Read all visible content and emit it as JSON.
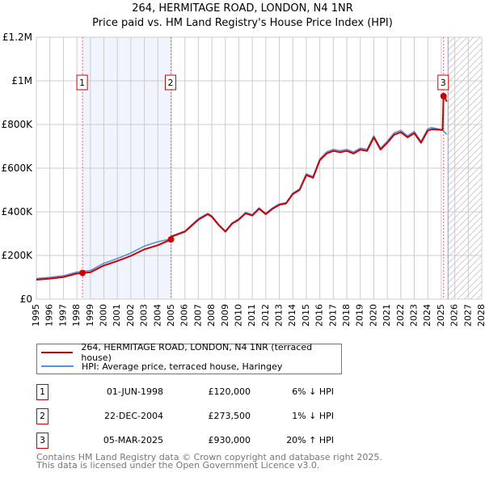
{
  "chart_data": {
    "type": "line",
    "title": "264, HERMITAGE ROAD, LONDON, N4 1NR",
    "subtitle": "Price paid vs. HM Land Registry's House Price Index (HPI)",
    "xlim": [
      1995,
      2028
    ],
    "ylim": [
      0,
      1200000
    ],
    "x_ticks": [
      "1995",
      "1996",
      "1997",
      "1998",
      "1999",
      "2000",
      "2001",
      "2002",
      "2003",
      "2004",
      "2005",
      "2006",
      "2007",
      "2008",
      "2009",
      "2010",
      "2011",
      "2012",
      "2013",
      "2014",
      "2015",
      "2016",
      "2017",
      "2018",
      "2019",
      "2020",
      "2021",
      "2022",
      "2023",
      "2024",
      "2025",
      "2026",
      "2027",
      "2028"
    ],
    "y_ticks": [
      {
        "value": 0,
        "label": "£0"
      },
      {
        "value": 200000,
        "label": "£200K"
      },
      {
        "value": 400000,
        "label": "£400K"
      },
      {
        "value": 600000,
        "label": "£600K"
      },
      {
        "value": 800000,
        "label": "£800K"
      },
      {
        "value": 1000000,
        "label": "£1M"
      },
      {
        "value": 1200000,
        "label": "£1.2M"
      }
    ],
    "grid": true,
    "forecast_hatch_from": 2025.5,
    "series": [
      {
        "name": "264, HERMITAGE ROAD, LONDON, N4 1NR (terraced house)",
        "color": "#cc0000",
        "x": [
          1995,
          1996,
          1997,
          1998,
          1998.42,
          1999,
          2000,
          2001,
          2002,
          2003,
          2004,
          2004.97,
          2005,
          2006,
          2007,
          2007.7,
          2008,
          2008.5,
          2009,
          2009.5,
          2010,
          2010.5,
          2011,
          2011.5,
          2012,
          2012.5,
          2013,
          2013.5,
          2014,
          2014.5,
          2015,
          2015.5,
          2016,
          2016.5,
          2017,
          2017.5,
          2018,
          2018.5,
          2019,
          2019.5,
          2020,
          2020.5,
          2021,
          2021.5,
          2022,
          2022.5,
          2023,
          2023.5,
          2024,
          2024.3,
          2025.1,
          2025.17,
          2025.3,
          2025.4
        ],
        "y": [
          89000,
          94000,
          101000,
          117000,
          120000,
          123000,
          154000,
          175000,
          198000,
          228000,
          247000,
          273500,
          286000,
          309000,
          364000,
          389000,
          377000,
          340000,
          309000,
          346000,
          364000,
          393000,
          383000,
          414000,
          389000,
          414000,
          432000,
          438000,
          481000,
          500000,
          568000,
          556000,
          636000,
          667000,
          679000,
          673000,
          679000,
          667000,
          685000,
          679000,
          741000,
          685000,
          716000,
          753000,
          765000,
          741000,
          760000,
          716000,
          772000,
          778000,
          775000,
          930000,
          920000,
          905000
        ]
      },
      {
        "name": "HPI: Average price, terraced house, Haringey",
        "color": "#5b8fd6",
        "x": [
          1995,
          1996,
          1997,
          1998,
          1999,
          2000,
          2001,
          2002,
          2003,
          2004,
          2004.97,
          2005,
          2006,
          2007,
          2007.7,
          2008,
          2008.5,
          2009,
          2009.5,
          2010,
          2010.5,
          2011,
          2011.5,
          2012,
          2012.5,
          2013,
          2013.5,
          2014,
          2014.5,
          2015,
          2015.5,
          2016,
          2016.5,
          2017,
          2017.5,
          2018,
          2018.5,
          2019,
          2019.5,
          2020,
          2020.5,
          2021,
          2021.5,
          2022,
          2022.5,
          2023,
          2023.5,
          2024,
          2024.3,
          2025.1,
          2025.4
        ],
        "y": [
          95000,
          100000,
          107000,
          124000,
          131000,
          164000,
          186000,
          211000,
          243000,
          263000,
          276000,
          289000,
          312000,
          368000,
          393000,
          381000,
          343000,
          312000,
          349000,
          368000,
          397000,
          387000,
          418000,
          393000,
          418000,
          436000,
          442000,
          486000,
          505000,
          574000,
          562000,
          642000,
          674000,
          686000,
          680000,
          686000,
          674000,
          692000,
          686000,
          748000,
          692000,
          723000,
          761000,
          773000,
          748000,
          768000,
          723000,
          780000,
          786000,
          775000,
          755000
        ]
      }
    ],
    "sales": [
      {
        "id": "1",
        "x": 1998.42,
        "y": 120000
      },
      {
        "id": "2",
        "x": 2004.97,
        "y": 273500
      },
      {
        "id": "3",
        "x": 2025.17,
        "y": 930000
      }
    ],
    "shaded_between_sales": [
      "1",
      "2"
    ]
  },
  "legend": [
    {
      "label": "264, HERMITAGE ROAD, LONDON, N4 1NR (terraced house)",
      "color": "#cc0000"
    },
    {
      "label": "HPI: Average price, terraced house, Haringey",
      "color": "#5b8fd6"
    }
  ],
  "transactions": [
    {
      "id": "1",
      "date": "01-JUN-1998",
      "price": "£120,000",
      "hpi": "6% ↓ HPI"
    },
    {
      "id": "2",
      "date": "22-DEC-2004",
      "price": "£273,500",
      "hpi": "1% ↓ HPI"
    },
    {
      "id": "3",
      "date": "05-MAR-2025",
      "price": "£930,000",
      "hpi": "20% ↑ HPI"
    }
  ],
  "footer": {
    "line1": "Contains HM Land Registry data © Crown copyright and database right 2025.",
    "line2": "This data is licensed under the Open Government Licence v3.0."
  }
}
